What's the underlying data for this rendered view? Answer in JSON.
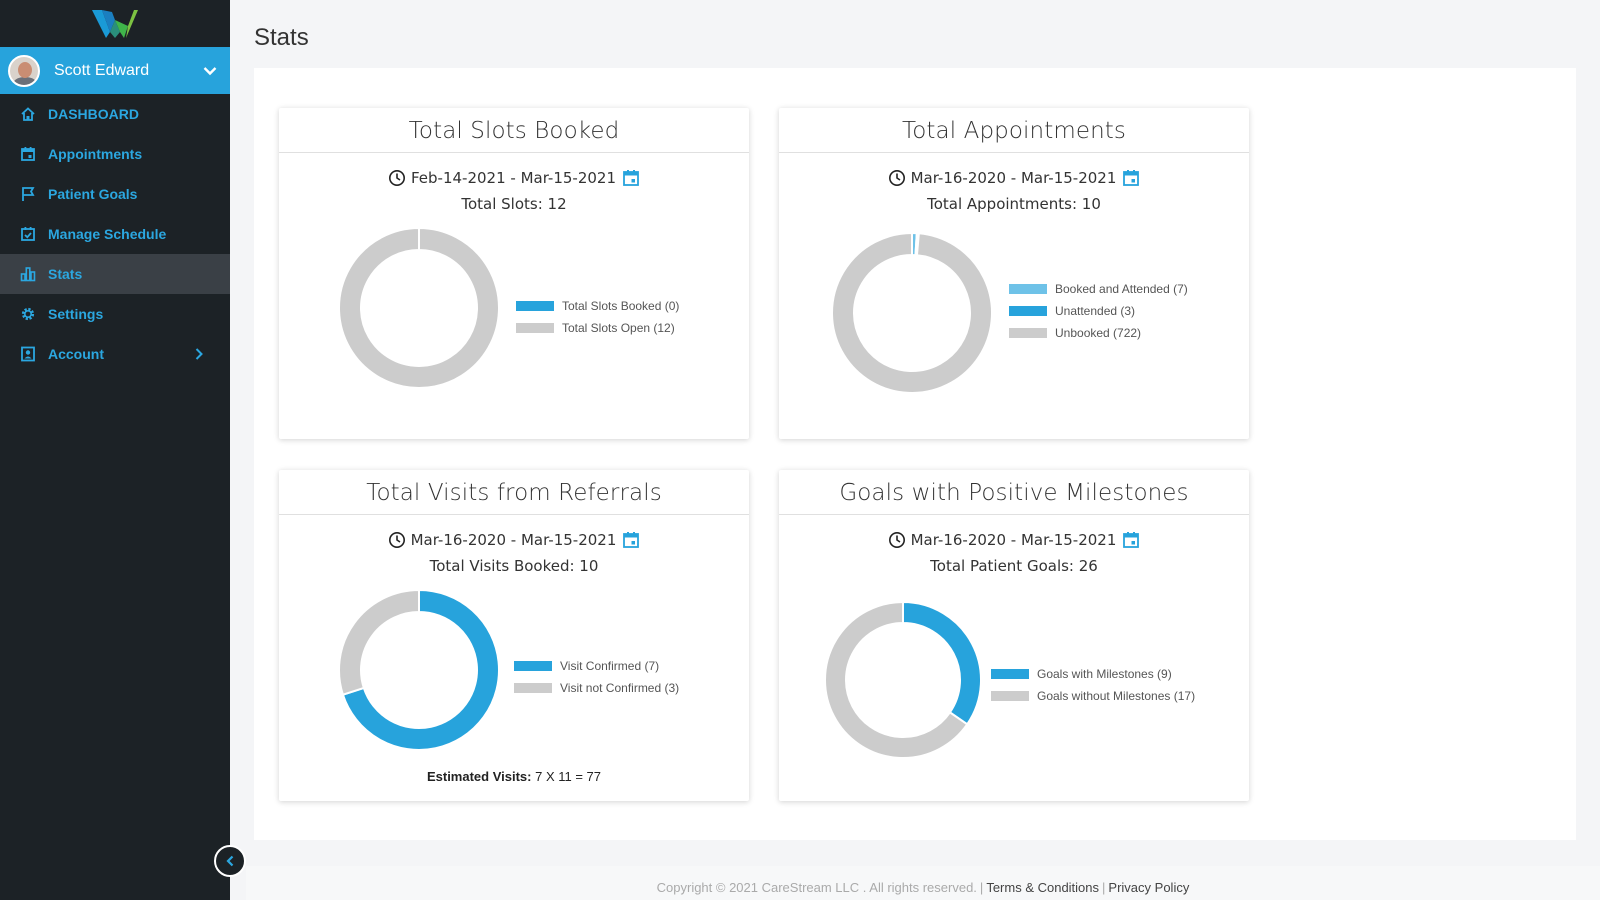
{
  "app": {
    "user_name": "Scott Edward",
    "page_title": "Stats"
  },
  "sidebar": {
    "items": [
      {
        "label": "DASHBOARD",
        "icon": "home-icon"
      },
      {
        "label": "Appointments",
        "icon": "calendar-icon"
      },
      {
        "label": "Patient Goals",
        "icon": "flag-icon"
      },
      {
        "label": "Manage Schedule",
        "icon": "calendar-check-icon"
      },
      {
        "label": "Stats",
        "icon": "bar-chart-icon",
        "active": true
      },
      {
        "label": "Settings",
        "icon": "gear-icon"
      },
      {
        "label": "Account",
        "icon": "account-icon",
        "has_submenu": true
      }
    ]
  },
  "colors": {
    "accent": "#27a3dc",
    "light_blue": "#6ec2e8",
    "grey": "#cccccc",
    "sidebar_bg": "#1c2226",
    "sidebar_active": "#3a4046"
  },
  "cards": [
    {
      "title": "Total Slots Booked",
      "date_range": "Feb-14-2021 - Mar-15-2021",
      "total_text": "Total Slots: 12"
    },
    {
      "title": "Total Appointments",
      "date_range": "Mar-16-2020 - Mar-15-2021",
      "total_text": "Total Appointments: 10"
    },
    {
      "title": "Total Visits from Referrals",
      "date_range": "Mar-16-2020 - Mar-15-2021",
      "total_text": "Total Visits Booked: 10",
      "estimate_label": "Estimated Visits:",
      "estimate_value": "7 X 11 = 77"
    },
    {
      "title": "Goals with Positive Milestones",
      "date_range": "Mar-16-2020 - Mar-15-2021",
      "total_text": "Total Patient Goals: 26"
    }
  ],
  "chart_data": [
    {
      "type": "pie",
      "labels": [
        "Total Slots Booked (0)",
        "Total Slots Open (12)"
      ],
      "values": [
        0,
        12
      ],
      "colors": [
        "#27a3dc",
        "#cccccc"
      ]
    },
    {
      "type": "pie",
      "labels": [
        "Booked and Attended (7)",
        "Unattended (3)",
        "Unbooked (722)"
      ],
      "values": [
        7,
        3,
        722
      ],
      "colors": [
        "#6ec2e8",
        "#27a3dc",
        "#cccccc"
      ]
    },
    {
      "type": "pie",
      "labels": [
        "Visit Confirmed (7)",
        "Visit not Confirmed (3)"
      ],
      "values": [
        7,
        3
      ],
      "colors": [
        "#27a3dc",
        "#cccccc"
      ]
    },
    {
      "type": "pie",
      "labels": [
        "Goals with Milestones (9)",
        "Goals without Milestones (17)"
      ],
      "values": [
        9,
        17
      ],
      "colors": [
        "#27a3dc",
        "#cccccc"
      ]
    }
  ],
  "footer": {
    "copyright": "Copyright © 2021 CareStream LLC . All rights reserved.",
    "terms": "Terms & Conditions",
    "privacy": "Privacy Policy"
  }
}
